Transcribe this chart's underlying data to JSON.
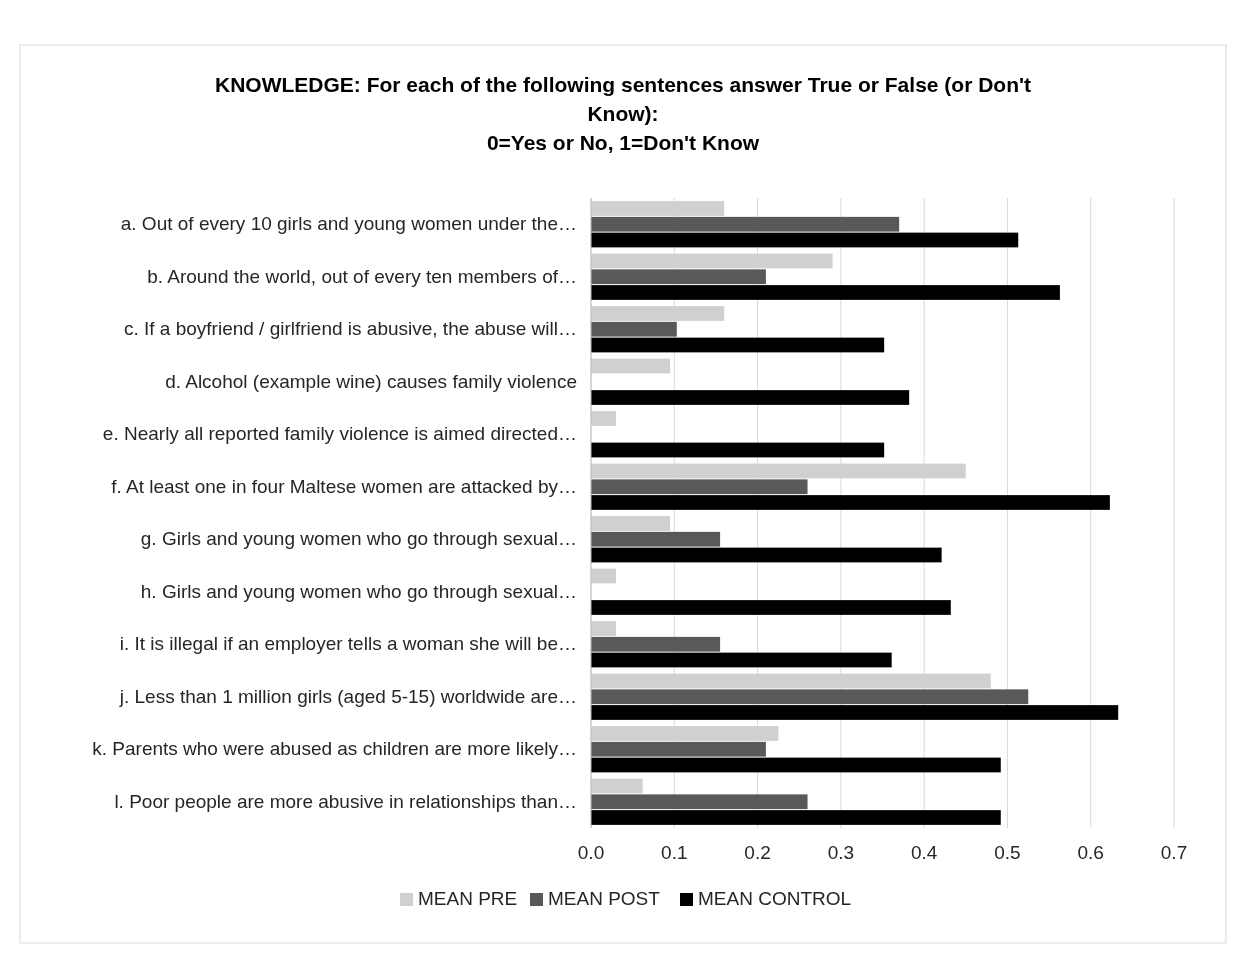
{
  "chart_data": {
    "type": "bar",
    "orientation": "horizontal",
    "title": "KNOWLEDGE: For each of the following sentences answer True or False (or Don't Know):",
    "subtitle": "0=Yes or No, 1=Don't Know",
    "categories": [
      "a. Out of every 10 girls and young women under the…",
      "b. Around the world, out of every ten members of…",
      "c. If a boyfriend / girlfriend is abusive, the abuse will…",
      "d. Alcohol (example wine) causes family violence",
      "e. Nearly all reported family violence is aimed directed…",
      "f. At least one in four Maltese women are attacked by…",
      "g. Girls and young women who go through sexual…",
      "h. Girls and young women who go through sexual…",
      "i. It is illegal if an employer tells a woman she will be…",
      "j. Less than 1 million girls (aged 5-15) worldwide are…",
      "k. Parents who were abused as children are more likely…",
      "l. Poor people are more abusive in relationships than…"
    ],
    "series": [
      {
        "name": "MEAN PRE",
        "color": "#d0d0d0",
        "values": [
          0.16,
          0.29,
          0.16,
          0.095,
          0.03,
          0.45,
          0.095,
          0.03,
          0.03,
          0.48,
          0.225,
          0.062
        ]
      },
      {
        "name": "MEAN POST",
        "color": "#595959",
        "values": [
          0.37,
          0.21,
          0.103,
          0,
          0,
          0.26,
          0.155,
          0,
          0.155,
          0.525,
          0.21,
          0.26
        ]
      },
      {
        "name": "MEAN CONTROL",
        "color": "#000000",
        "values": [
          0.513,
          0.563,
          0.352,
          0.382,
          0.352,
          0.623,
          0.421,
          0.432,
          0.361,
          0.633,
          0.492,
          0.492
        ]
      }
    ],
    "xlim": [
      0,
      0.7
    ],
    "xticks": [
      {
        "value": 0,
        "label": "0.0"
      },
      {
        "value": 0.1,
        "label": "0.1"
      },
      {
        "value": 0.2,
        "label": "0.2"
      },
      {
        "value": 0.3,
        "label": "0.3"
      },
      {
        "value": 0.4,
        "label": "0.4"
      },
      {
        "value": 0.5,
        "label": "0.5"
      },
      {
        "value": 0.6,
        "label": "0.6"
      },
      {
        "value": 0.7,
        "label": "0.7"
      }
    ],
    "grid": "x",
    "legend": "bottom"
  }
}
